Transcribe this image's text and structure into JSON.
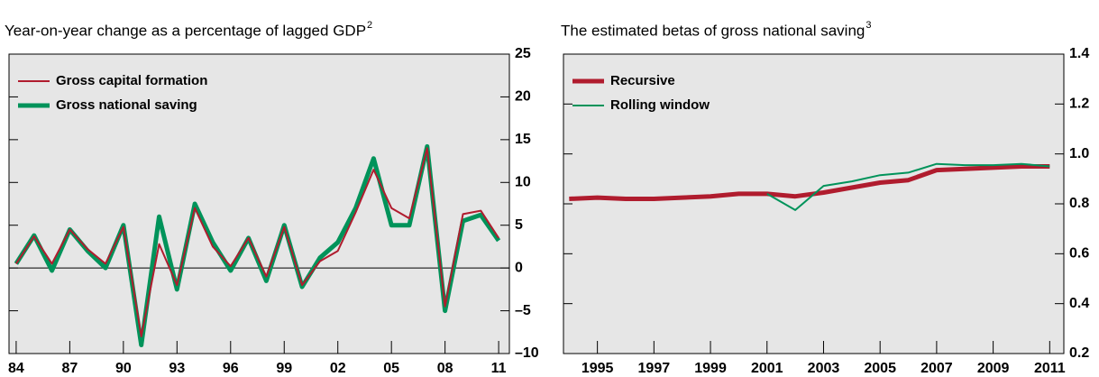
{
  "chart_data": [
    {
      "type": "line",
      "title": "Year-on-year change as a percentage of lagged GDP",
      "footnote": "2",
      "x": [
        1984,
        1985,
        1986,
        1987,
        1988,
        1989,
        1990,
        1991,
        1992,
        1993,
        1994,
        1995,
        1996,
        1997,
        1998,
        1999,
        2000,
        2001,
        2002,
        2003,
        2004,
        2005,
        2006,
        2007,
        2008,
        2009,
        2010,
        2011
      ],
      "series": [
        {
          "name": "Gross capital formation",
          "color": "#b01c2e",
          "values": [
            0.5,
            3.7,
            0.5,
            4.5,
            2.2,
            0.5,
            4.8,
            -8,
            2.8,
            -2,
            7,
            2.5,
            0.2,
            3.5,
            -1,
            4.8,
            -2,
            0.8,
            2,
            6.5,
            11.5,
            7,
            5.8,
            14,
            -4.5,
            6.3,
            6.7,
            3.5
          ]
        },
        {
          "name": "Gross national saving",
          "color": "#00935a",
          "values": [
            0.5,
            3.8,
            -0.3,
            4.5,
            2,
            0,
            5,
            -9,
            6,
            -2.5,
            7.5,
            3,
            -0.3,
            3.5,
            -1.5,
            5,
            -2.2,
            1.2,
            3,
            7,
            12.8,
            5,
            5,
            14.2,
            -5,
            5.5,
            6.2,
            3.2
          ]
        }
      ],
      "xlim": [
        1983.6,
        2011.6
      ],
      "xticks": [
        {
          "value": 1984,
          "label": "84"
        },
        {
          "value": 1987,
          "label": "87"
        },
        {
          "value": 1990,
          "label": "90"
        },
        {
          "value": 1993,
          "label": "93"
        },
        {
          "value": 1996,
          "label": "96"
        },
        {
          "value": 1999,
          "label": "99"
        },
        {
          "value": 2002,
          "label": "02"
        },
        {
          "value": 2005,
          "label": "05"
        },
        {
          "value": 2008,
          "label": "08"
        },
        {
          "value": 2011,
          "label": "11"
        }
      ],
      "ylim": [
        -10,
        25
      ],
      "yticks": [
        {
          "value": -10,
          "label": "–10"
        },
        {
          "value": -5,
          "label": "–5"
        },
        0,
        5,
        10,
        15,
        20,
        25
      ],
      "zero_line": true,
      "legend": "top-left"
    },
    {
      "type": "line",
      "title": "The estimated betas of gross national saving",
      "footnote": "3",
      "x": [
        1994,
        1995,
        1996,
        1997,
        1998,
        1999,
        2000,
        2001,
        2002,
        2003,
        2004,
        2005,
        2006,
        2007,
        2008,
        2009,
        2010,
        2011
      ],
      "series": [
        {
          "name": "Recursive",
          "color": "#b01c2e",
          "values": [
            0.82,
            0.825,
            0.82,
            0.82,
            0.825,
            0.83,
            0.84,
            0.84,
            0.83,
            0.845,
            0.865,
            0.885,
            0.895,
            0.935,
            0.94,
            0.945,
            0.95,
            0.95
          ]
        },
        {
          "name": "Rolling window",
          "color": "#00935a",
          "values": [
            null,
            null,
            null,
            null,
            null,
            null,
            null,
            0.84,
            0.775,
            0.872,
            0.89,
            0.915,
            0.925,
            0.96,
            0.955,
            0.955,
            0.96,
            0.95
          ]
        }
      ],
      "xlim": [
        1993.8,
        2011.5
      ],
      "xticks": [
        1995,
        1997,
        1999,
        2001,
        2003,
        2005,
        2007,
        2009,
        2011
      ],
      "ylim": [
        0.2,
        1.4
      ],
      "yticks": [
        0.2,
        0.4,
        0.6,
        0.8,
        {
          "value": 1,
          "label": "1.0"
        },
        1.2,
        1.4
      ],
      "zero_line": false,
      "legend": "top-left"
    }
  ]
}
